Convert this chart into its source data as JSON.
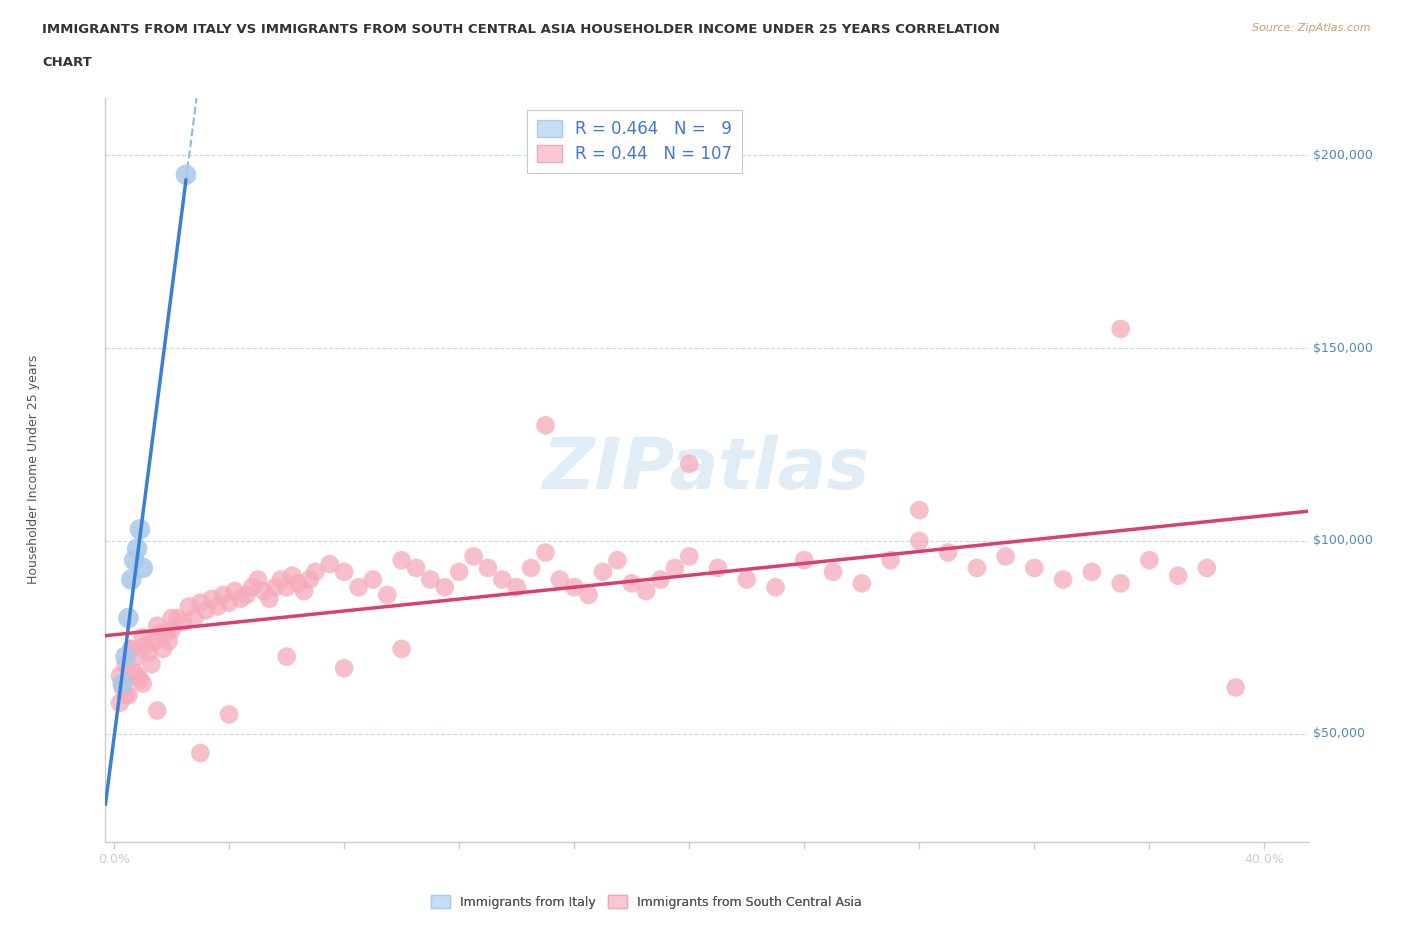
{
  "title_line1": "IMMIGRANTS FROM ITALY VS IMMIGRANTS FROM SOUTH CENTRAL ASIA HOUSEHOLDER INCOME UNDER 25 YEARS CORRELATION",
  "title_line2": "CHART",
  "source": "Source: ZipAtlas.com",
  "ylabel": "Householder Income Under 25 years",
  "ylabel_ticks": [
    "$50,000",
    "$100,000",
    "$150,000",
    "$200,000"
  ],
  "ylabel_tick_vals": [
    50000,
    100000,
    150000,
    200000
  ],
  "xlim": [
    -0.003,
    0.415
  ],
  "ylim": [
    22000,
    215000
  ],
  "italy_R": 0.464,
  "italy_N": 9,
  "sca_R": 0.44,
  "sca_N": 107,
  "italy_dot_color": "#aac8e8",
  "sca_dot_color": "#f5aabb",
  "italy_legend_fill": "#c5ddf5",
  "sca_legend_fill": "#fac8d5",
  "trendline_italy_color": "#3a7fd5",
  "trendline_sca_color": "#d84070",
  "trendline_dash_color": "#90b8d8",
  "grid_color": "#c8d8e8",
  "axis_color": "#cccccc",
  "watermark_color": "#c8ddf0",
  "label_color": "#5588bb",
  "title_color": "#333333",
  "source_color": "#c8a070",
  "legend_text_color": "#4477cc",
  "bottom_legend_color": "#555555",
  "italy_x": [
    0.003,
    0.004,
    0.005,
    0.006,
    0.007,
    0.008,
    0.009,
    0.01,
    0.025
  ],
  "italy_y": [
    63000,
    70000,
    80000,
    90000,
    95000,
    98000,
    103000,
    93000,
    195000
  ],
  "sca_x": [
    0.002,
    0.003,
    0.004,
    0.005,
    0.006,
    0.007,
    0.008,
    0.009,
    0.01,
    0.011,
    0.012,
    0.013,
    0.014,
    0.015,
    0.016,
    0.017,
    0.018,
    0.019,
    0.02,
    0.022,
    0.024,
    0.026,
    0.028,
    0.03,
    0.032,
    0.034,
    0.036,
    0.038,
    0.04,
    0.042,
    0.044,
    0.046,
    0.048,
    0.05,
    0.052,
    0.054,
    0.056,
    0.058,
    0.06,
    0.062,
    0.064,
    0.066,
    0.068,
    0.07,
    0.075,
    0.08,
    0.085,
    0.09,
    0.095,
    0.1,
    0.105,
    0.11,
    0.115,
    0.12,
    0.125,
    0.13,
    0.135,
    0.14,
    0.145,
    0.15,
    0.155,
    0.16,
    0.165,
    0.17,
    0.175,
    0.18,
    0.185,
    0.19,
    0.195,
    0.2,
    0.21,
    0.22,
    0.23,
    0.24,
    0.25,
    0.26,
    0.27,
    0.28,
    0.29,
    0.3,
    0.31,
    0.32,
    0.33,
    0.34,
    0.35,
    0.36,
    0.37,
    0.38,
    0.002,
    0.004,
    0.006,
    0.008,
    0.01,
    0.015,
    0.02,
    0.03,
    0.04,
    0.06,
    0.08,
    0.1,
    0.15,
    0.2,
    0.28,
    0.35,
    0.39
  ],
  "sca_y": [
    65000,
    62000,
    68000,
    60000,
    72000,
    66000,
    70000,
    64000,
    75000,
    73000,
    71000,
    68000,
    74000,
    78000,
    76000,
    72000,
    76000,
    74000,
    77000,
    80000,
    79000,
    83000,
    80000,
    84000,
    82000,
    85000,
    83000,
    86000,
    84000,
    87000,
    85000,
    86000,
    88000,
    90000,
    87000,
    85000,
    88000,
    90000,
    88000,
    91000,
    89000,
    87000,
    90000,
    92000,
    94000,
    92000,
    88000,
    90000,
    86000,
    95000,
    93000,
    90000,
    88000,
    92000,
    96000,
    93000,
    90000,
    88000,
    93000,
    97000,
    90000,
    88000,
    86000,
    92000,
    95000,
    89000,
    87000,
    90000,
    93000,
    96000,
    93000,
    90000,
    88000,
    95000,
    92000,
    89000,
    95000,
    100000,
    97000,
    93000,
    96000,
    93000,
    90000,
    92000,
    89000,
    95000,
    91000,
    93000,
    58000,
    60000,
    72000,
    65000,
    63000,
    56000,
    80000,
    45000,
    55000,
    70000,
    67000,
    72000,
    130000,
    120000,
    108000,
    155000,
    62000
  ]
}
